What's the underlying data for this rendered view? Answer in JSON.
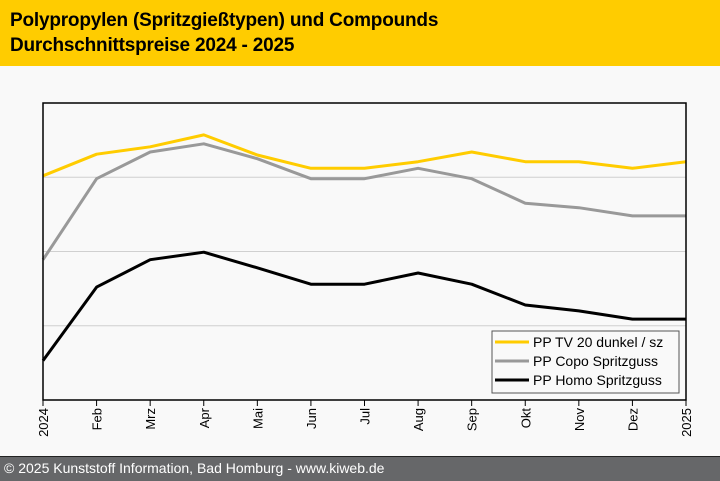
{
  "header": {
    "title_line1": "Polypropylen (Spritzgießtypen) und Compounds",
    "title_line2": "Durchschnittspreise 2024 - 2025"
  },
  "footer": {
    "text": "© 2025 Kunststoff Information, Bad Homburg - www.kiweb.de"
  },
  "colors": {
    "header_bg": "#ffcc00",
    "footer_bg": "#666769",
    "series_yellow": "#ffcc00",
    "series_gray": "#999999",
    "series_black": "#000000",
    "gridline": "#d0d0d0"
  },
  "chart_data": {
    "type": "line",
    "title": "Polypropylen (Spritzgießtypen) und Compounds – Durchschnittspreise 2024 - 2025",
    "xlabel": "",
    "ylabel": "",
    "y_tick_labels_shown": false,
    "ylim": [
      0,
      4
    ],
    "y_gridlines": [
      1,
      2,
      3
    ],
    "value_note": "relative price level (no y-axis values shown); estimated from gridlines",
    "grid": true,
    "legend_position": "bottom-right",
    "categories": [
      "2024",
      "Feb",
      "Mrz",
      "Apr",
      "Mai",
      "Jun",
      "Jul",
      "Aug",
      "Sep",
      "Okt",
      "Nov",
      "Dez",
      "2025"
    ],
    "series": [
      {
        "name": "PP TV 20 dunkel / sz",
        "color": "#ffcc00",
        "values": [
          3.02,
          3.31,
          3.41,
          3.57,
          3.3,
          3.12,
          3.12,
          3.21,
          3.34,
          3.21,
          3.21,
          3.12,
          3.21
        ]
      },
      {
        "name": "PP Copo Spritzguss",
        "color": "#999999",
        "values": [
          1.89,
          2.98,
          3.34,
          3.45,
          3.25,
          2.98,
          2.98,
          3.12,
          2.98,
          2.65,
          2.59,
          2.48,
          2.48
        ]
      },
      {
        "name": "PP Homo Spritzguss",
        "color": "#000000",
        "values": [
          0.53,
          1.52,
          1.89,
          1.99,
          1.78,
          1.56,
          1.56,
          1.71,
          1.56,
          1.28,
          1.2,
          1.09,
          1.09
        ]
      }
    ]
  }
}
